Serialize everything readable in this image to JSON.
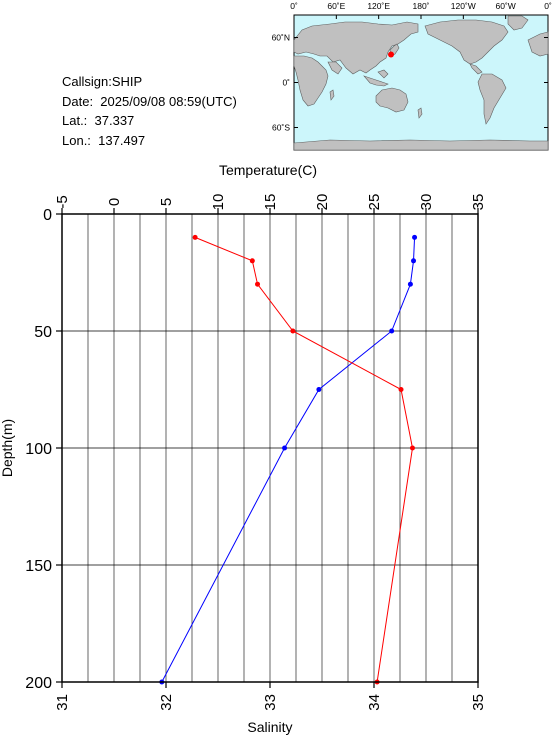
{
  "header": {
    "callsign_line": "Callsign:SHIP",
    "date_line": "Date:  2025/09/08 08:59(UTC)",
    "lat_line": "Lat.:  37.337",
    "lon_line": "Lon.:  137.497"
  },
  "map": {
    "lon_labels": [
      "0˚",
      "60˚E",
      "120˚E",
      "180˚",
      "120˚W",
      "60˚W",
      "0˚"
    ],
    "lat_labels": [
      "60˚N",
      "0˚",
      "60˚S"
    ],
    "station": {
      "lat": 37.337,
      "lon": 137.497
    },
    "colors": {
      "ocean": "#ccf6fb",
      "land": "#c0c0c0",
      "marker": "#ff0000"
    }
  },
  "chart_data": {
    "type": "line",
    "title": "",
    "ylabel": "Depth(m)",
    "ylim": [
      0,
      200
    ],
    "y_inverted": true,
    "y_ticks": [
      "0",
      "50",
      "100",
      "150",
      "200"
    ],
    "temperature_axis": {
      "label": "Temperature(C)",
      "position": "top",
      "lim": [
        -5,
        35
      ],
      "ticks": [
        "-5",
        "0",
        "5",
        "10",
        "15",
        "20",
        "25",
        "30",
        "35"
      ]
    },
    "salinity_axis": {
      "label": "Salinity",
      "position": "bottom",
      "lim": [
        31,
        35
      ],
      "ticks": [
        "31",
        "32",
        "33",
        "34",
        "35"
      ]
    },
    "grid": true,
    "series": [
      {
        "axis": "temperature",
        "color": "#0000ff",
        "points": [
          {
            "depth": 10,
            "value": 28.9
          },
          {
            "depth": 20,
            "value": 28.8
          },
          {
            "depth": 30,
            "value": 28.5
          },
          {
            "depth": 50,
            "value": 26.7
          },
          {
            "depth": 75,
            "value": 19.7
          },
          {
            "depth": 100,
            "value": 16.4
          },
          {
            "depth": 200,
            "value": 4.6
          }
        ]
      },
      {
        "axis": "salinity",
        "color": "#ff0000",
        "points": [
          {
            "depth": 10,
            "value": 32.28
          },
          {
            "depth": 20,
            "value": 32.83
          },
          {
            "depth": 30,
            "value": 32.88
          },
          {
            "depth": 50,
            "value": 33.22
          },
          {
            "depth": 75,
            "value": 34.26
          },
          {
            "depth": 100,
            "value": 34.37
          },
          {
            "depth": 200,
            "value": 34.03
          }
        ]
      }
    ]
  }
}
